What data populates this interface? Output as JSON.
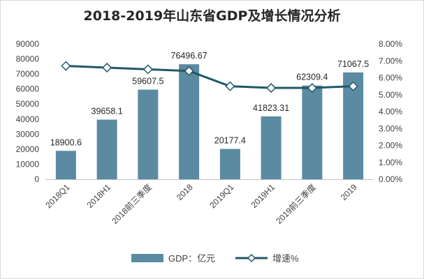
{
  "chart_data": {
    "type": "bar",
    "title": "2018-2019年山东省GDP及增长情况分析",
    "categories": [
      "2018Q1",
      "2018H1",
      "2018前三季度",
      "2018",
      "2019Q1",
      "2019H1",
      "2019前三季度",
      "2019"
    ],
    "series": [
      {
        "name": "GDP：亿元",
        "type": "bar",
        "axis": "left",
        "values": [
          18900.6,
          39658.1,
          59607.5,
          76496.67,
          20177.4,
          41823.31,
          62309.4,
          71067.5
        ],
        "labels": [
          "18900.6",
          "39658.1",
          "59607.5",
          "76496.67",
          "20177.4",
          "41823.31",
          "62309.4",
          "71067.5"
        ],
        "color": "#5b8ba3"
      },
      {
        "name": "增速%",
        "type": "line",
        "axis": "right",
        "values": [
          6.7,
          6.6,
          6.5,
          6.4,
          5.5,
          5.4,
          5.4,
          5.5
        ],
        "color": "#215868"
      }
    ],
    "y_left": {
      "ylim": [
        0,
        90000
      ],
      "ticks": [
        "0",
        "10000",
        "20000",
        "30000",
        "40000",
        "50000",
        "60000",
        "70000",
        "80000",
        "90000"
      ]
    },
    "y_right": {
      "ylim": [
        0,
        8
      ],
      "ticks": [
        "0.00%",
        "1.00%",
        "2.00%",
        "3.00%",
        "4.00%",
        "5.00%",
        "6.00%",
        "7.00%",
        "8.00%"
      ]
    },
    "grid": false,
    "legend_position": "bottom"
  }
}
